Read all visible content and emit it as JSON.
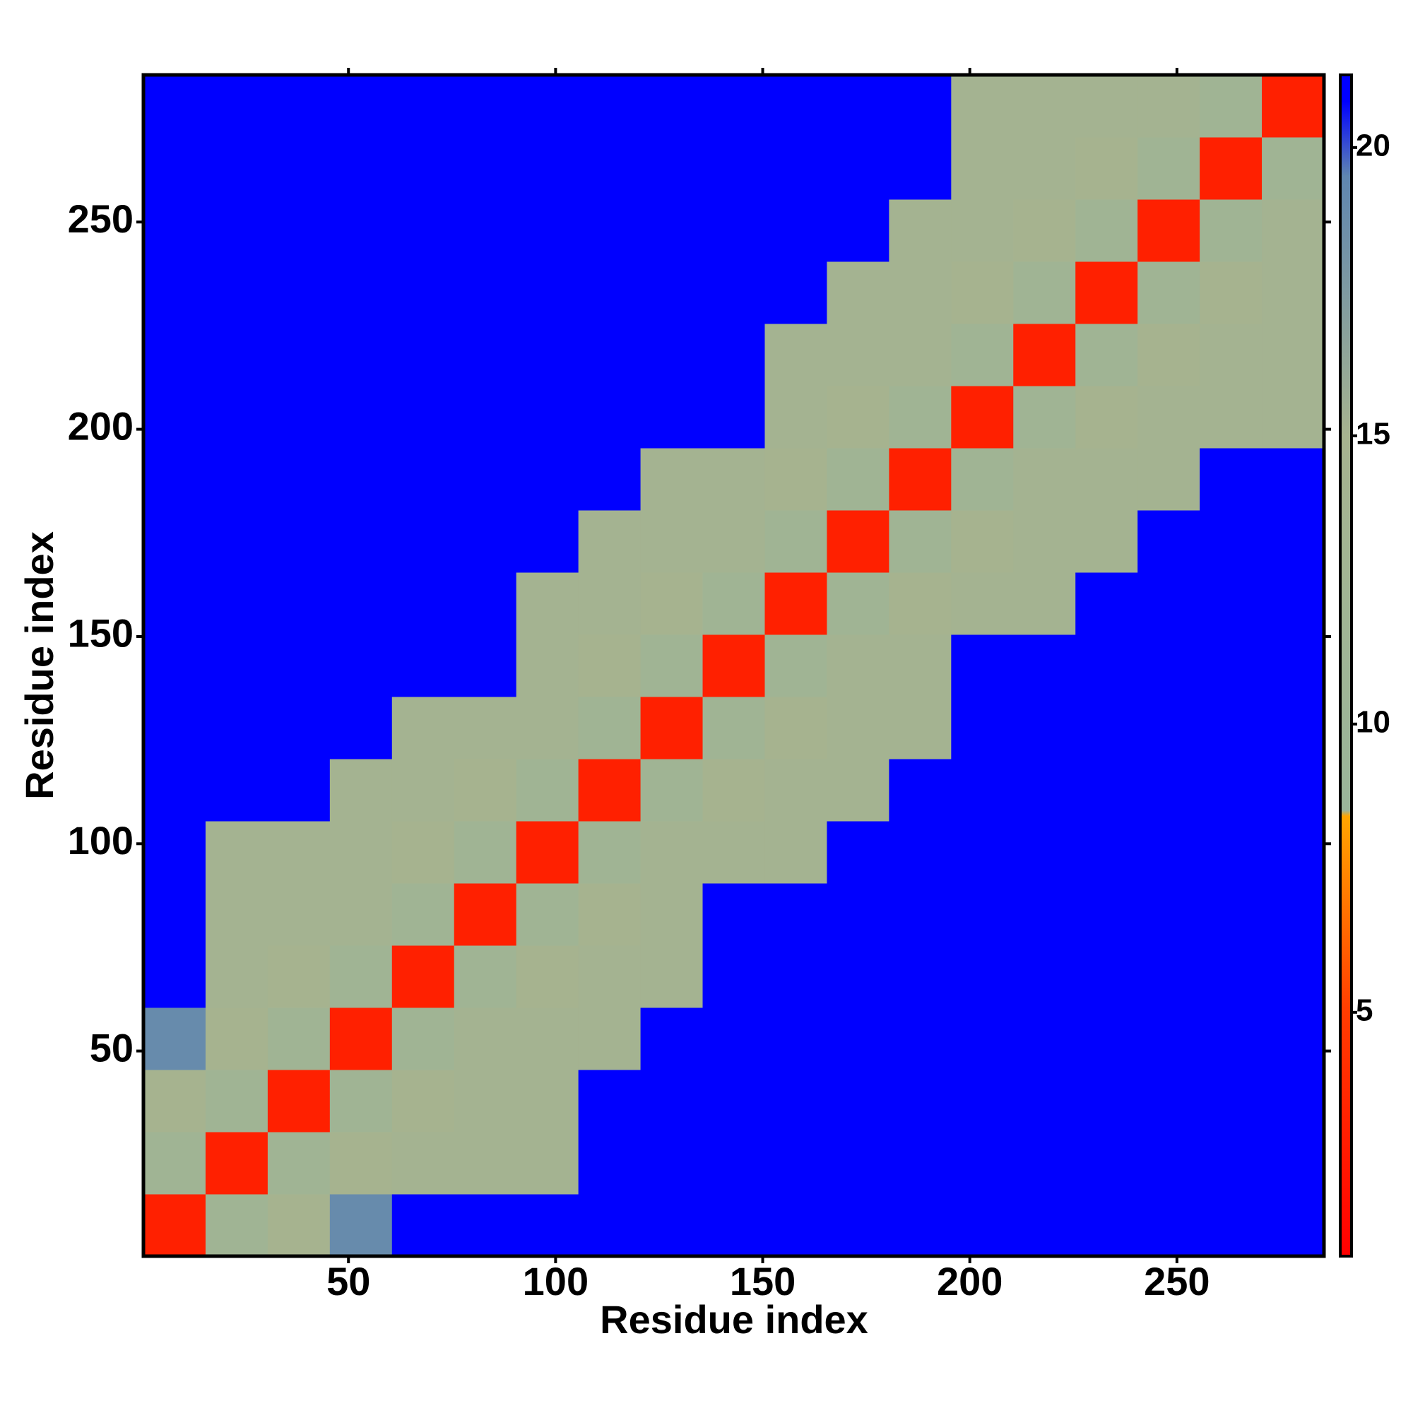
{
  "chart_data": {
    "type": "heatmap",
    "x_label": "Residue index",
    "y_label": "Residue index",
    "x": [
      8,
      23,
      38,
      53,
      68,
      83,
      98,
      113,
      128,
      143,
      158,
      173,
      188,
      203,
      218,
      233,
      248,
      263,
      278
    ],
    "y": [
      8,
      23,
      38,
      53,
      68,
      83,
      98,
      113,
      128,
      143,
      158,
      173,
      188,
      203,
      218,
      233,
      248,
      263,
      278
    ],
    "z": [
      [
        3,
        12,
        15,
        19,
        21,
        21,
        21,
        21,
        21,
        21,
        21,
        21,
        21,
        21,
        21,
        21,
        21,
        21,
        21
      ],
      [
        12,
        3,
        12,
        15,
        14,
        14,
        14,
        21,
        21,
        21,
        21,
        21,
        21,
        21,
        21,
        21,
        21,
        21,
        21
      ],
      [
        15,
        12,
        3,
        12,
        15,
        14,
        14,
        21,
        21,
        21,
        21,
        21,
        21,
        21,
        21,
        21,
        21,
        21,
        21
      ],
      [
        19,
        15,
        12,
        3,
        12,
        14,
        14,
        14,
        21,
        21,
        21,
        21,
        21,
        21,
        21,
        21,
        21,
        21,
        21
      ],
      [
        21,
        14,
        15,
        12,
        3,
        12,
        15,
        14,
        14,
        21,
        21,
        21,
        21,
        21,
        21,
        21,
        21,
        21,
        21
      ],
      [
        21,
        14,
        14,
        14,
        12,
        3,
        12,
        15,
        14,
        21,
        21,
        21,
        21,
        21,
        21,
        21,
        21,
        21,
        21
      ],
      [
        21,
        14,
        14,
        14,
        15,
        12,
        3,
        12,
        14,
        14,
        14,
        21,
        21,
        21,
        21,
        21,
        21,
        21,
        21
      ],
      [
        21,
        21,
        21,
        14,
        14,
        15,
        12,
        3,
        12,
        15,
        14,
        14,
        21,
        21,
        21,
        21,
        21,
        21,
        21
      ],
      [
        21,
        21,
        21,
        21,
        14,
        14,
        14,
        12,
        3,
        12,
        15,
        14,
        14,
        21,
        21,
        21,
        21,
        21,
        21
      ],
      [
        21,
        21,
        21,
        21,
        21,
        21,
        14,
        15,
        12,
        3,
        12,
        14,
        14,
        21,
        21,
        21,
        21,
        21,
        21
      ],
      [
        21,
        21,
        21,
        21,
        21,
        21,
        14,
        14,
        15,
        12,
        3,
        12,
        15,
        14,
        14,
        21,
        21,
        21,
        21
      ],
      [
        21,
        21,
        21,
        21,
        21,
        21,
        21,
        14,
        14,
        14,
        12,
        3,
        12,
        15,
        14,
        14,
        21,
        21,
        21
      ],
      [
        21,
        21,
        21,
        21,
        21,
        21,
        21,
        21,
        14,
        14,
        15,
        12,
        3,
        12,
        14,
        14,
        14,
        21,
        21
      ],
      [
        21,
        21,
        21,
        21,
        21,
        21,
        21,
        21,
        21,
        21,
        14,
        15,
        12,
        3,
        12,
        15,
        14,
        14,
        14
      ],
      [
        21,
        21,
        21,
        21,
        21,
        21,
        21,
        21,
        21,
        21,
        14,
        14,
        14,
        12,
        3,
        12,
        15,
        14,
        14
      ],
      [
        21,
        21,
        21,
        21,
        21,
        21,
        21,
        21,
        21,
        21,
        21,
        14,
        14,
        15,
        12,
        3,
        12,
        15,
        14
      ],
      [
        21,
        21,
        21,
        21,
        21,
        21,
        21,
        21,
        21,
        21,
        21,
        21,
        14,
        14,
        15,
        12,
        3,
        12,
        14
      ],
      [
        21,
        21,
        21,
        21,
        21,
        21,
        21,
        21,
        21,
        21,
        21,
        21,
        21,
        14,
        14,
        15,
        12,
        3,
        12
      ],
      [
        21,
        21,
        21,
        21,
        21,
        21,
        21,
        21,
        21,
        21,
        21,
        21,
        21,
        14,
        14,
        14,
        14,
        12,
        3
      ]
    ],
    "xlim": [
      0.5,
      285.5
    ],
    "ylim": [
      0.5,
      285.5
    ],
    "xticks": [
      50,
      100,
      150,
      200,
      250
    ],
    "yticks": [
      50,
      100,
      150,
      200,
      250
    ],
    "clim": [
      0.77,
      21.26
    ],
    "cticks": [
      5,
      10,
      15,
      20
    ],
    "colorscale": [
      [
        0.77,
        "#ff0000"
      ],
      [
        5,
        "#ff3c00"
      ],
      [
        8.4,
        "#ffa500"
      ],
      [
        8.5,
        "#9ab59a"
      ],
      [
        15,
        "#a6b38f"
      ],
      [
        19.5,
        "#5f86b0"
      ],
      [
        20.8,
        "#0000ff"
      ]
    ]
  }
}
